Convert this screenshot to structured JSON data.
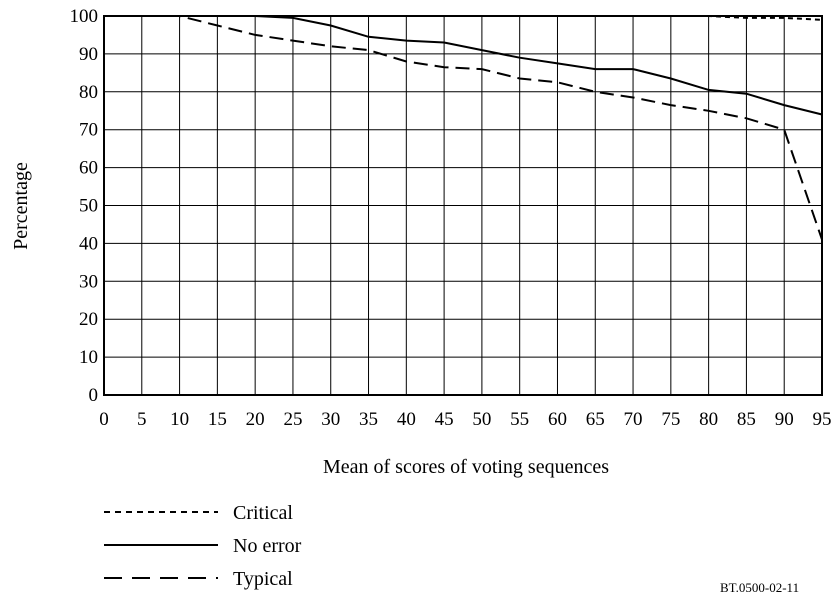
{
  "chart_data": {
    "type": "line",
    "xlabel": "Mean of scores of voting sequences",
    "ylabel": "Percentage",
    "xlim": [
      0,
      95
    ],
    "ylim": [
      0,
      100
    ],
    "x_ticks": [
      "0",
      "5",
      "10",
      "15",
      "20",
      "25",
      "30",
      "35",
      "40",
      "45",
      "50",
      "55",
      "60",
      "65",
      "70",
      "75",
      "80",
      "85",
      "90",
      "95"
    ],
    "y_ticks": [
      "0",
      "10",
      "20",
      "30",
      "40",
      "50",
      "60",
      "70",
      "80",
      "90",
      "100"
    ],
    "grid": true,
    "legend_position": "bottom-left",
    "x": [
      0,
      5,
      10,
      15,
      20,
      25,
      30,
      35,
      40,
      45,
      50,
      55,
      60,
      65,
      70,
      75,
      80,
      85,
      90,
      95
    ],
    "series": [
      {
        "name": "Critical",
        "line_style": "dotted",
        "values": [
          100,
          100,
          100,
          100,
          100,
          100,
          100,
          100,
          100,
          100,
          100,
          100,
          100,
          100,
          100,
          100,
          100,
          99.5,
          99.5,
          99
        ]
      },
      {
        "name": "No error",
        "line_style": "solid",
        "values": [
          100,
          100,
          100,
          100,
          100,
          99.5,
          97.5,
          94.5,
          93.5,
          93,
          91,
          89,
          87.5,
          86,
          86,
          83.5,
          80.5,
          79.5,
          76.5,
          74
        ]
      },
      {
        "name": "Typical",
        "line_style": "dashed",
        "values": [
          100,
          100,
          100,
          97.5,
          95,
          93.5,
          92,
          91,
          88,
          86.5,
          86,
          83.5,
          82.5,
          80,
          78.5,
          76.5,
          75,
          73,
          70,
          41
        ]
      }
    ]
  },
  "figure_ref": "BT.0500-02-11"
}
